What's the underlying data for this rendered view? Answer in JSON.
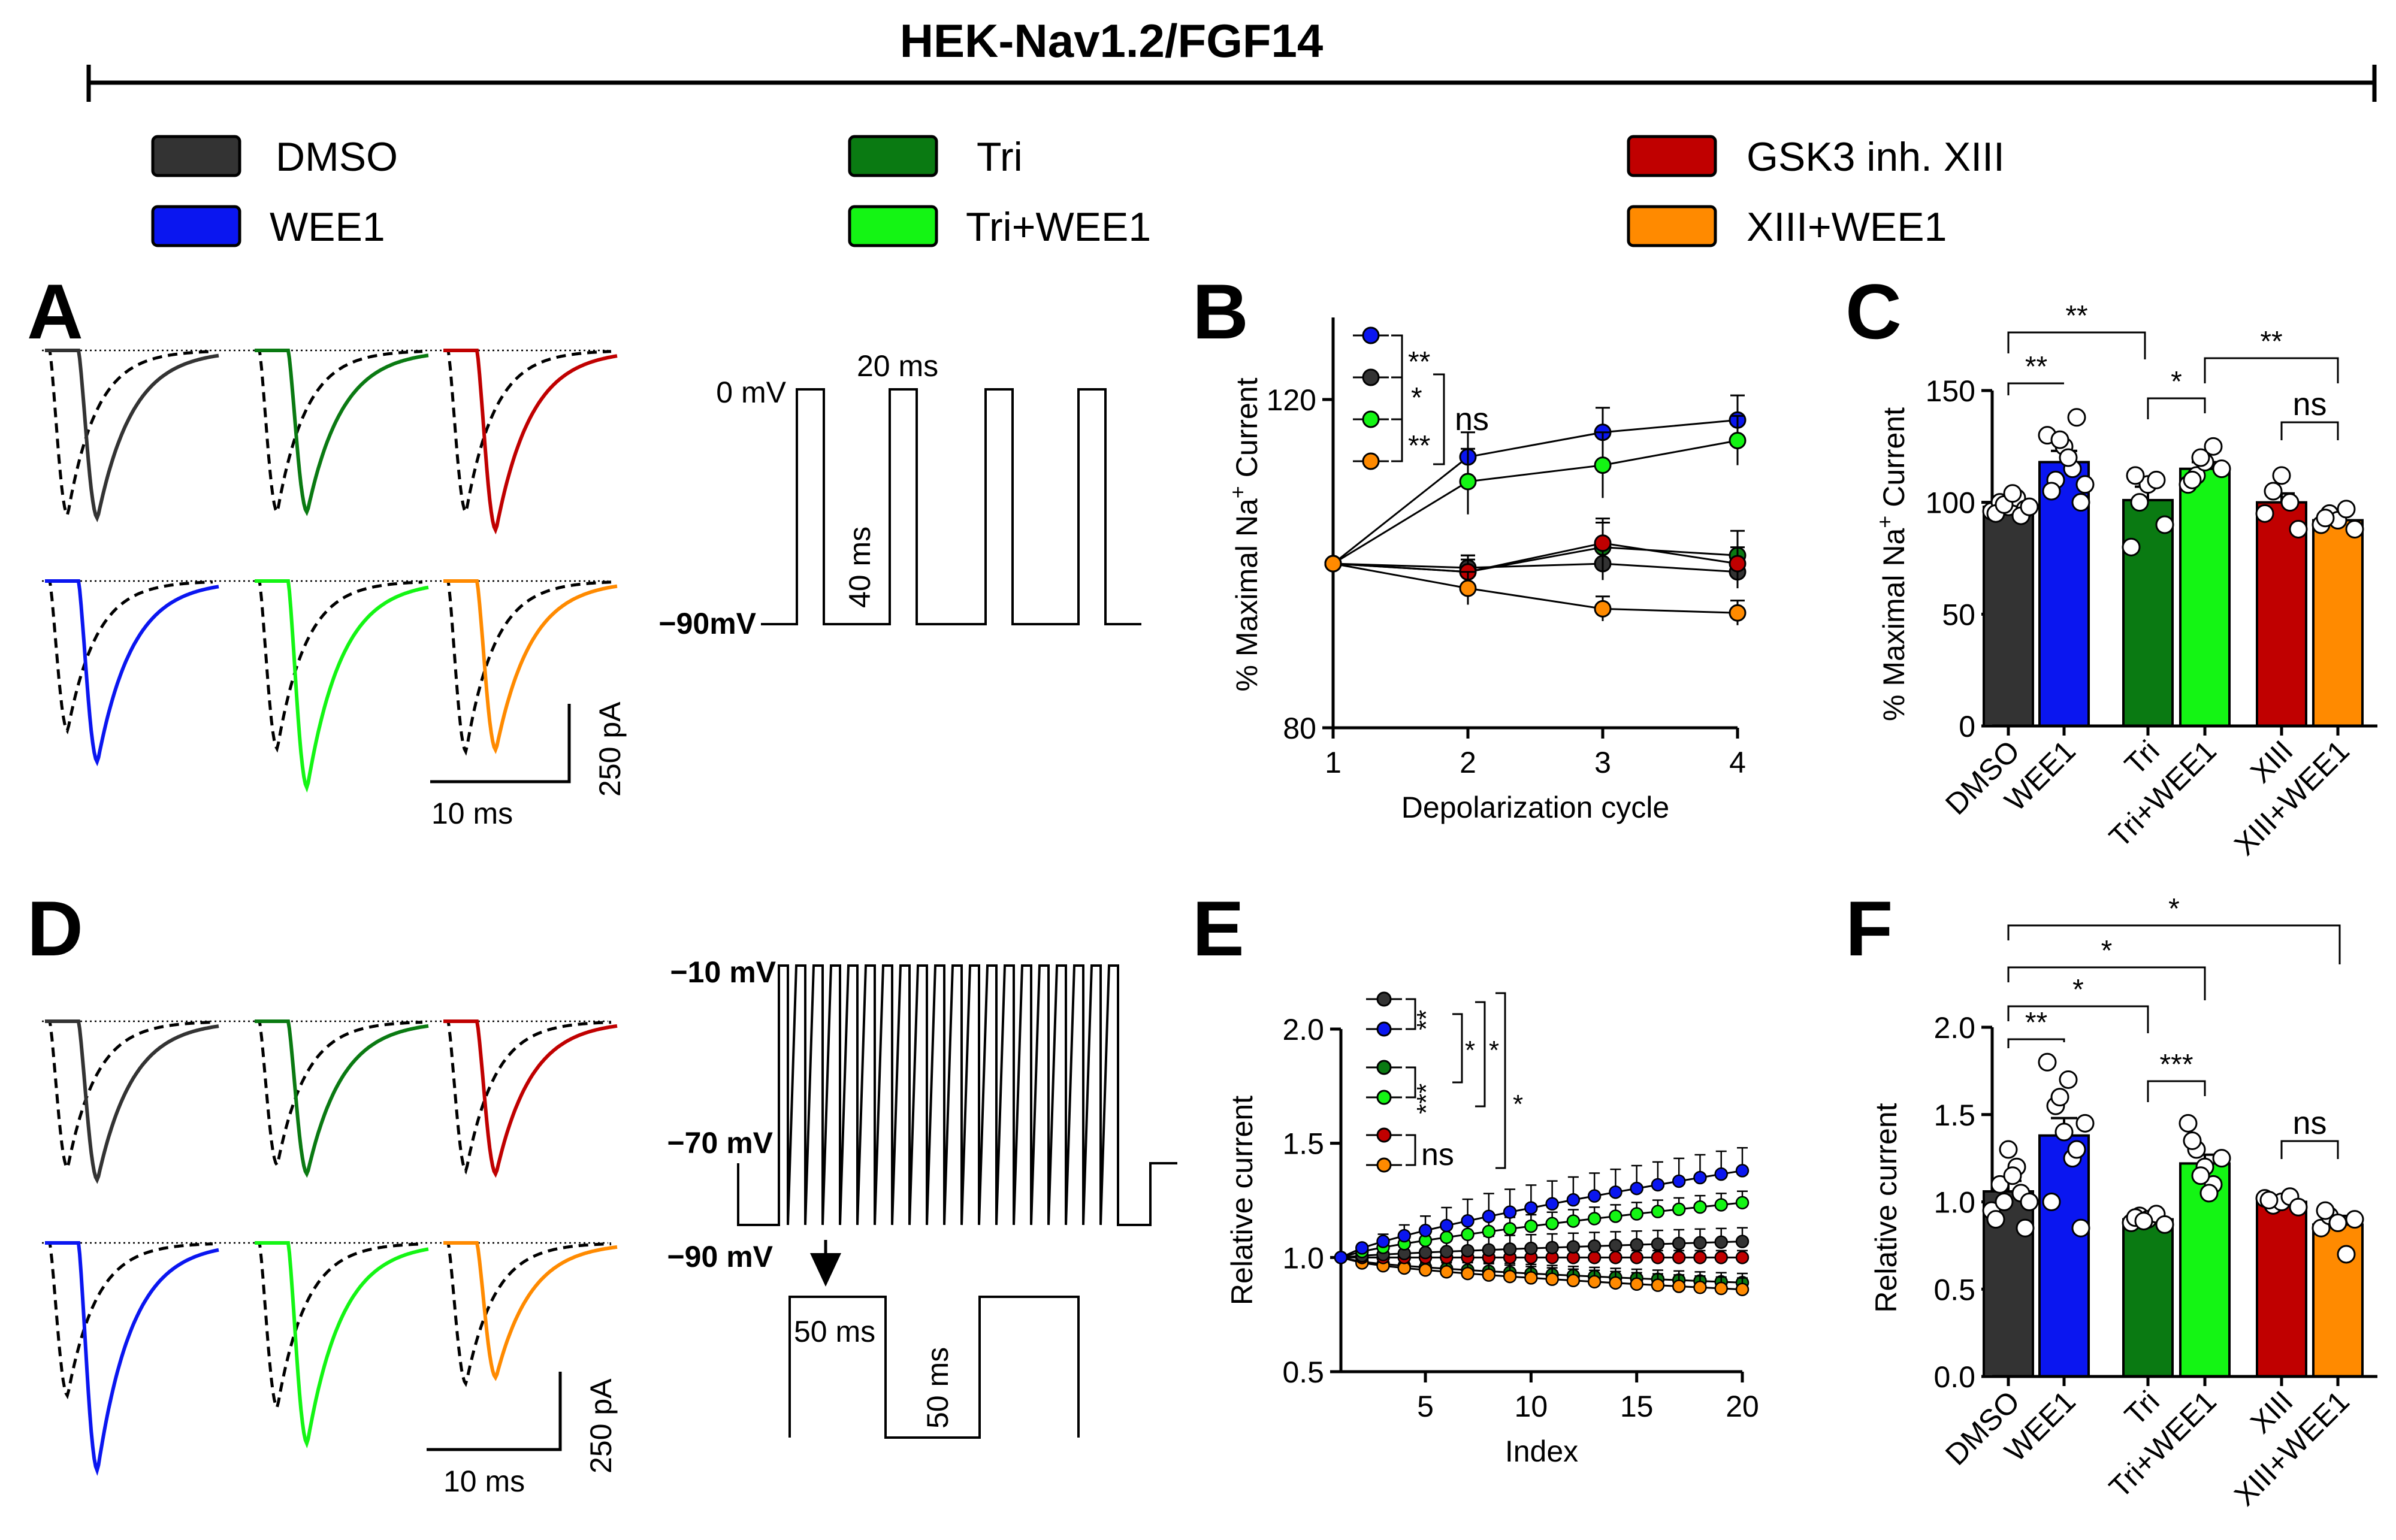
{
  "header": {
    "title": "HEK-Nav1.2/FGF14"
  },
  "legend": [
    {
      "label": "DMSO",
      "color": "#333333"
    },
    {
      "label": "WEE1",
      "color": "#0a16f0"
    },
    {
      "label": "Tri",
      "color": "#0a7a12"
    },
    {
      "label": "Tri+WEE1",
      "color": "#14f514"
    },
    {
      "label": "GSK3 inh. XIII",
      "color": "#c00000"
    },
    {
      "label": "XIII+WEE1",
      "color": "#ff8a00"
    }
  ],
  "panels": {
    "A": "A",
    "B": "B",
    "C": "C",
    "D": "D",
    "E": "E",
    "F": "F"
  },
  "protocol_a": {
    "v_high": "0 mV",
    "v_low": "−90mV",
    "pulse": "20 ms",
    "interval": "40 ms"
  },
  "protocol_d": {
    "v_top": "−10 mV",
    "v_mid": "−70 mV",
    "v_low": "−90 mV",
    "pulse": "50 ms",
    "interval": "50 ms"
  },
  "scalebar_a": {
    "time": "10 ms",
    "current": "250 pA"
  },
  "scalebar_d": {
    "time": "10 ms",
    "current": "250 pA"
  },
  "chart_data": [
    {
      "panel": "B",
      "type": "line",
      "xlabel": "Depolarization cycle",
      "ylabel": "% Maximal Na",
      "ylabel_sup": "+",
      "ylabel_tail": " Current",
      "x": [
        1,
        2,
        3,
        4
      ],
      "xticks": [
        "1",
        "2",
        "3",
        "4"
      ],
      "ylim": [
        80,
        130
      ],
      "yticks": [
        "80",
        "120"
      ],
      "ytick_values": [
        80,
        120
      ],
      "series": [
        {
          "name": "DMSO",
          "color": "#333333",
          "values": [
            100,
            99.5,
            100,
            99
          ],
          "err": [
            0,
            1.5,
            2,
            2
          ]
        },
        {
          "name": "WEE1",
          "color": "#0a16f0",
          "values": [
            100,
            113,
            116,
            117.5
          ],
          "err": [
            0,
            3,
            3,
            3
          ]
        },
        {
          "name": "Tri",
          "color": "#0a7a12",
          "values": [
            100,
            99,
            102,
            101
          ],
          "err": [
            0,
            1.5,
            3,
            3
          ]
        },
        {
          "name": "Tri+WEE1",
          "color": "#14f514",
          "values": [
            100,
            110,
            112,
            115
          ],
          "err": [
            0,
            4,
            4,
            3
          ]
        },
        {
          "name": "GSK3 inh. XIII",
          "color": "#c00000",
          "values": [
            100,
            99,
            102.5,
            100
          ],
          "err": [
            0,
            2,
            3,
            2
          ]
        },
        {
          "name": "XIII+WEE1",
          "color": "#ff8a00",
          "values": [
            100,
            97,
            94.5,
            94
          ],
          "err": [
            0,
            2,
            1.5,
            1.5
          ]
        }
      ],
      "annotations": [
        "**",
        "*",
        "**",
        "ns"
      ]
    },
    {
      "panel": "C",
      "type": "bar",
      "ylabel": "% Maximal Na",
      "ylabel_sup": "+",
      "ylabel_tail": " Current",
      "categories": [
        "DMSO",
        "WEE1",
        "Tri",
        "Tri+WEE1",
        "XIII",
        "XIII+WEE1"
      ],
      "colors": [
        "#333333",
        "#0a16f0",
        "#0a7a12",
        "#14f514",
        "#c00000",
        "#ff8a00"
      ],
      "values": [
        98,
        118,
        101,
        115,
        100,
        92
      ],
      "err": [
        2,
        5,
        6,
        3,
        4,
        3
      ],
      "points": [
        [
          96,
          100,
          98,
          102,
          97,
          95,
          99,
          104,
          94,
          98
        ],
        [
          130,
          110,
          125,
          115,
          100,
          105,
          128,
          120,
          138,
          108
        ],
        [
          80,
          100,
          108,
          110,
          90,
          112
        ],
        [
          108,
          112,
          118,
          125,
          115,
          110,
          120
        ],
        [
          95,
          105,
          112,
          100,
          88
        ],
        [
          90,
          95,
          92,
          97,
          88,
          93
        ]
      ],
      "ylim": [
        0,
        150
      ],
      "yticks": [
        "0",
        "50",
        "100",
        "150"
      ],
      "ytick_values": [
        0,
        50,
        100,
        150
      ],
      "annotations": [
        "**",
        "**",
        "*",
        "**",
        "ns"
      ]
    },
    {
      "panel": "E",
      "type": "line",
      "xlabel": "Index",
      "ylabel": "Relative current",
      "x_range": [
        1,
        20
      ],
      "xlim": [
        1,
        20
      ],
      "xticks": [
        "5",
        "10",
        "15",
        "20"
      ],
      "xtick_values": [
        5,
        10,
        15,
        20
      ],
      "ylim": [
        0.5,
        2.0
      ],
      "yticks": [
        "0.5",
        "1.0",
        "1.5",
        "2.0"
      ],
      "ytick_values": [
        0.5,
        1.0,
        1.5,
        2.0
      ],
      "series": [
        {
          "name": "DMSO",
          "color": "#333333",
          "start": 1.0,
          "end": 1.07,
          "err": 0.06
        },
        {
          "name": "WEE1",
          "color": "#0a16f0",
          "start": 1.0,
          "end": 1.38,
          "err": 0.1
        },
        {
          "name": "Tri",
          "color": "#0a7a12",
          "start": 1.0,
          "end": 0.89,
          "err": 0.04
        },
        {
          "name": "Tri+WEE1",
          "color": "#14f514",
          "start": 1.0,
          "end": 1.24,
          "err": 0.05
        },
        {
          "name": "GSK3 inh. XIII",
          "color": "#c00000",
          "start": 1.0,
          "end": 1.0,
          "err": 0.03
        },
        {
          "name": "XIII+WEE1",
          "color": "#ff8a00",
          "start": 1.0,
          "end": 0.86,
          "err": 0.05
        }
      ],
      "annotations": [
        "**",
        "***",
        "*",
        "*",
        "*",
        "ns"
      ]
    },
    {
      "panel": "F",
      "type": "bar",
      "ylabel": "Relative current",
      "categories": [
        "DMSO",
        "WEE1",
        "Tri",
        "Tri+WEE1",
        "XIII",
        "XIII+WEE1"
      ],
      "colors": [
        "#333333",
        "#0a16f0",
        "#0a7a12",
        "#14f514",
        "#c00000",
        "#ff8a00"
      ],
      "values": [
        1.06,
        1.38,
        0.9,
        1.22,
        1.0,
        0.87
      ],
      "err": [
        0.06,
        0.1,
        0.03,
        0.05,
        0.02,
        0.05
      ],
      "points": [
        [
          0.95,
          1.1,
          1.3,
          1.2,
          0.85,
          0.9,
          1.0,
          1.15,
          1.05,
          1.0
        ],
        [
          1.8,
          1.55,
          1.4,
          1.25,
          0.85,
          1.0,
          1.6,
          1.7,
          1.3,
          1.45
        ],
        [
          0.88,
          0.92,
          0.9,
          0.93,
          0.87,
          0.91,
          0.89
        ],
        [
          1.45,
          1.3,
          1.2,
          1.1,
          1.25,
          1.35,
          1.15,
          1.05
        ],
        [
          1.02,
          0.98,
          1.0,
          1.03,
          0.97,
          1.01
        ],
        [
          0.85,
          0.92,
          0.88,
          0.7,
          0.9,
          0.95
        ]
      ],
      "ylim": [
        0,
        2.0
      ],
      "yticks": [
        "0.0",
        "0.5",
        "1.0",
        "1.5",
        "2.0"
      ],
      "ytick_values": [
        0,
        0.5,
        1.0,
        1.5,
        2.0
      ],
      "annotations": [
        "*",
        "*",
        "*",
        "**",
        "***",
        "ns"
      ]
    }
  ]
}
